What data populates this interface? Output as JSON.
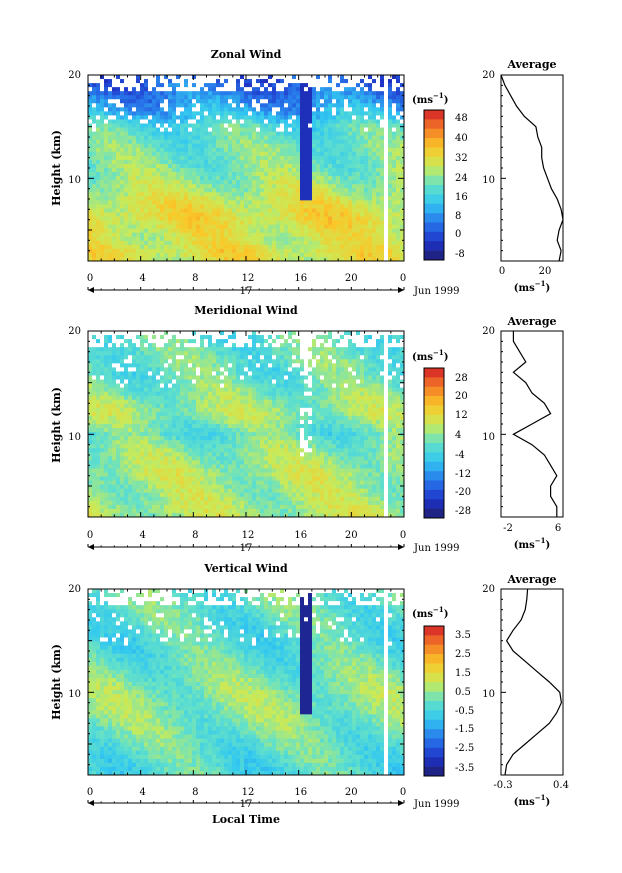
{
  "figure": {
    "time_axis_label": "Local Time",
    "date_label": "17",
    "date_month_label": "Jun 1999",
    "panels": [
      {
        "id": "zonal",
        "title": "Zonal Wind",
        "ylabel": "Height (km)",
        "unit_label": "(ms",
        "unit_exp": "−1",
        "colorbar_ticks": [
          "48",
          "40",
          "32",
          "24",
          "16",
          "8",
          "0",
          "-8"
        ],
        "avg_title": "Average",
        "avg_xticks": [
          "0",
          "20"
        ],
        "avg_unit": "(ms",
        "avg_unit_exp": "−1",
        "avg_unit_close": ")"
      },
      {
        "id": "meridional",
        "title": "Meridional Wind",
        "ylabel": "Height (km)",
        "unit_label": "(ms",
        "unit_exp": "−1",
        "colorbar_ticks": [
          "28",
          "20",
          "12",
          "4",
          "-4",
          "-12",
          "-20",
          "-28"
        ],
        "avg_title": "Average",
        "avg_xticks": [
          "-2",
          "6"
        ],
        "avg_unit": "(ms",
        "avg_unit_exp": "−1",
        "avg_unit_close": ")"
      },
      {
        "id": "vertical",
        "title": "Vertical Wind",
        "ylabel": "Height (km)",
        "unit_label": "(ms",
        "unit_exp": "−1",
        "colorbar_ticks": [
          "3.5",
          "2.5",
          "1.5",
          "0.5",
          "-0.5",
          "-1.5",
          "-2.5",
          "-3.5"
        ],
        "avg_title": "Average",
        "avg_xticks": [
          "-0.3",
          "0.4"
        ],
        "avg_unit": "(ms",
        "avg_unit_exp": "−1",
        "avg_unit_close": ")"
      }
    ]
  },
  "chart_data": [
    {
      "type": "heatmap",
      "title": "Zonal Wind",
      "xlabel": "",
      "ylabel": "Height (km)",
      "x_ticks": [
        "0",
        "4",
        "8",
        "12",
        "16",
        "20",
        "0"
      ],
      "x_range": [
        0,
        24
      ],
      "y_ticks": [
        "10",
        "20"
      ],
      "y_range": [
        2,
        20
      ],
      "colorbar": {
        "unit": "(ms−1)",
        "ticks": [
          48,
          40,
          32,
          24,
          16,
          8,
          0,
          -8
        ],
        "range": [
          -12,
          52
        ]
      },
      "field_description_values": {
        "low_level_mean": 24,
        "upper_level_mean": 6
      }
    },
    {
      "type": "line",
      "title": "Average",
      "xlabel": "(ms−1)",
      "xlim": [
        0,
        32
      ],
      "x_ticks": [
        "0",
        "20"
      ],
      "ylim": [
        2,
        20
      ],
      "y_ticks": [
        "10",
        "20"
      ],
      "profile": {
        "height": [
          2,
          3,
          4,
          5,
          6,
          7,
          8,
          9,
          10,
          11,
          12,
          13,
          14,
          15,
          16,
          17,
          18,
          19,
          20
        ],
        "value": [
          30,
          31,
          29,
          30,
          32,
          31,
          29,
          26,
          24,
          22,
          21,
          21,
          19,
          18,
          12,
          8,
          5,
          2,
          0
        ]
      }
    },
    {
      "type": "heatmap",
      "title": "Meridional Wind",
      "xlabel": "",
      "ylabel": "Height (km)",
      "x_ticks": [
        "0",
        "4",
        "8",
        "12",
        "16",
        "20",
        "0"
      ],
      "x_range": [
        0,
        24
      ],
      "y_ticks": [
        "10",
        "20"
      ],
      "y_range": [
        2,
        20
      ],
      "colorbar": {
        "unit": "(ms−1)",
        "ticks": [
          28,
          20,
          12,
          4,
          -4,
          -12,
          -20,
          -28
        ],
        "range": [
          -32,
          32
        ]
      },
      "field_description_values": {
        "low_level_mean": 6,
        "upper_level_mean": 0
      }
    },
    {
      "type": "line",
      "title": "Average",
      "xlabel": "(ms−1)",
      "xlim": [
        -3,
        7
      ],
      "x_ticks": [
        "-2",
        "6"
      ],
      "ylim": [
        2,
        20
      ],
      "y_ticks": [
        "10",
        "20"
      ],
      "profile": {
        "height": [
          2,
          3,
          4,
          5,
          6,
          7,
          8,
          9,
          10,
          11,
          12,
          13,
          14,
          15,
          16,
          17,
          18,
          19,
          20
        ],
        "value": [
          6,
          6,
          5,
          5,
          6,
          5,
          4,
          2,
          -1,
          2,
          5,
          4,
          2,
          1,
          -1,
          1,
          0,
          -1,
          -1
        ]
      }
    },
    {
      "type": "heatmap",
      "title": "Vertical Wind",
      "xlabel": "Local Time",
      "ylabel": "Height (km)",
      "x_ticks": [
        "0",
        "4",
        "8",
        "12",
        "16",
        "20",
        "0"
      ],
      "x_range": [
        0,
        24
      ],
      "y_ticks": [
        "10",
        "20"
      ],
      "y_range": [
        2,
        20
      ],
      "colorbar": {
        "unit": "(ms−1)",
        "ticks": [
          3.5,
          2.5,
          1.5,
          0.5,
          -0.5,
          -1.5,
          -2.5,
          -3.5
        ],
        "range": [
          -4,
          4
        ]
      },
      "field_description_values": {
        "low_level_mean": -0.5,
        "upper_level_mean": -0.4
      }
    },
    {
      "type": "line",
      "title": "Average",
      "xlabel": "(ms−1)",
      "xlim": [
        -0.35,
        0.42
      ],
      "x_ticks": [
        "-0.3",
        "0.4"
      ],
      "ylim": [
        2,
        20
      ],
      "y_ticks": [
        "10",
        "20"
      ],
      "profile": {
        "height": [
          2,
          3,
          4,
          5,
          6,
          7,
          8,
          9,
          10,
          11,
          12,
          13,
          14,
          15,
          16,
          17,
          18,
          19,
          20
        ],
        "value": [
          -0.3,
          -0.28,
          -0.2,
          -0.05,
          0.1,
          0.25,
          0.34,
          0.4,
          0.38,
          0.25,
          0.1,
          -0.05,
          -0.2,
          -0.28,
          -0.2,
          -0.1,
          -0.05,
          -0.03,
          -0.02
        ]
      }
    }
  ]
}
